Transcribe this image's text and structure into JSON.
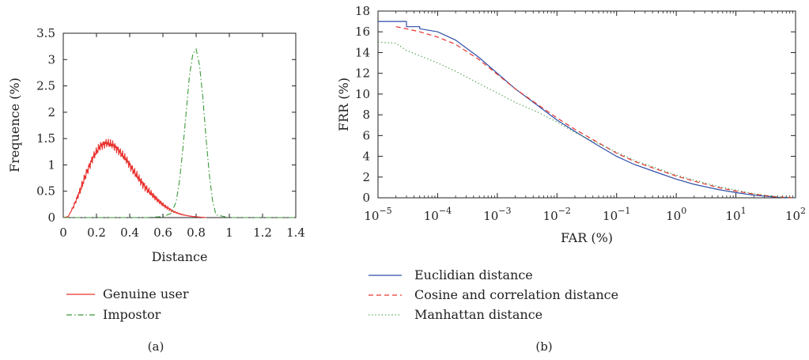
{
  "chart_data": [
    {
      "type": "line",
      "caption": "(a)",
      "xlabel": "Distance",
      "ylabel": "Frequence (%)",
      "xlim": [
        0,
        1.4
      ],
      "ylim": [
        0,
        3.5
      ],
      "xticks": [
        "0",
        "0.2",
        "0.4",
        "0.6",
        "0.8",
        "1",
        "1.2",
        "1.4"
      ],
      "yticks": [
        "0",
        "0.5",
        "1",
        "1.5",
        "2",
        "2.5",
        "3",
        "3.5"
      ],
      "grid": false,
      "legend_position": "below",
      "series": [
        {
          "name": "Genuine user",
          "color": "#e8332f",
          "dash": "solid",
          "x": [
            0,
            0.03,
            0.06,
            0.1,
            0.14,
            0.18,
            0.22,
            0.26,
            0.3,
            0.34,
            0.38,
            0.42,
            0.46,
            0.5,
            0.54,
            0.58,
            0.62,
            0.66,
            0.7,
            0.74,
            0.78,
            0.82,
            0.86
          ],
          "y": [
            0,
            0.02,
            0.2,
            0.5,
            0.85,
            1.15,
            1.35,
            1.42,
            1.38,
            1.25,
            1.1,
            0.9,
            0.72,
            0.55,
            0.42,
            0.3,
            0.2,
            0.12,
            0.07,
            0.04,
            0.02,
            0.01,
            0
          ]
        },
        {
          "name": "Impostor",
          "color": "#3a9a3a",
          "dash": "dashdot",
          "x": [
            0,
            0.5,
            0.6,
            0.65,
            0.68,
            0.7,
            0.72,
            0.74,
            0.76,
            0.78,
            0.8,
            0.82,
            0.84,
            0.86,
            0.88,
            0.9,
            0.92,
            1.0,
            1.4
          ],
          "y": [
            0,
            0,
            0.02,
            0.08,
            0.3,
            0.7,
            1.3,
            2.0,
            2.7,
            3.1,
            3.2,
            2.9,
            2.3,
            1.5,
            0.8,
            0.3,
            0.05,
            0,
            0
          ]
        }
      ]
    },
    {
      "type": "line",
      "caption": "(b)",
      "xlabel": "FAR (%)",
      "ylabel": "FRR (%)",
      "xscale": "log",
      "xlim": [
        1e-05,
        100
      ],
      "ylim": [
        0,
        18
      ],
      "xtick_exponents": [
        "−5",
        "−4",
        "−3",
        "−2",
        "−1",
        "0",
        "1",
        "2"
      ],
      "xtick_base": "10",
      "yticks": [
        "0",
        "2",
        "4",
        "6",
        "8",
        "10",
        "12",
        "14",
        "16",
        "18"
      ],
      "grid": false,
      "legend_position": "below",
      "series": [
        {
          "name": "Euclidian distance",
          "color": "#2f4fa8",
          "dash": "solid",
          "x": [
            1e-05,
            2e-05,
            3e-05,
            5e-05,
            0.0001,
            0.0002,
            0.0005,
            0.001,
            0.002,
            0.005,
            0.01,
            0.02,
            0.05,
            0.1,
            0.2,
            0.5,
            1,
            2,
            5,
            10,
            20,
            50,
            100
          ],
          "y": [
            17.0,
            17.0,
            16.5,
            16.3,
            16.0,
            15.2,
            13.5,
            12.0,
            10.5,
            8.8,
            7.5,
            6.4,
            5.0,
            4.0,
            3.2,
            2.4,
            1.8,
            1.3,
            0.8,
            0.5,
            0.25,
            0.05,
            0
          ]
        },
        {
          "name": "Cosine and correlation distance",
          "color": "#e8332f",
          "dash": "dashed",
          "x": [
            2e-05,
            3e-05,
            5e-05,
            0.0001,
            0.0002,
            0.0005,
            0.001,
            0.002,
            0.005,
            0.01,
            0.02,
            0.05,
            0.1,
            0.2,
            0.5,
            1,
            2,
            5,
            10,
            20,
            50,
            100
          ],
          "y": [
            16.5,
            16.3,
            16.0,
            15.5,
            14.8,
            13.3,
            11.9,
            10.5,
            8.9,
            7.7,
            6.6,
            5.3,
            4.3,
            3.5,
            2.7,
            2.1,
            1.6,
            1.0,
            0.65,
            0.35,
            0.08,
            0
          ]
        },
        {
          "name": "Manhattan distance",
          "color": "#3a9a3a",
          "dash": "dotted",
          "x": [
            1e-05,
            2e-05,
            3e-05,
            5e-05,
            0.0001,
            0.0002,
            0.0005,
            0.001,
            0.002,
            0.005,
            0.01,
            0.02,
            0.05,
            0.1,
            0.2,
            0.5,
            1,
            2,
            5,
            10,
            20,
            50,
            100
          ],
          "y": [
            15.0,
            14.9,
            14.2,
            13.7,
            13.0,
            12.2,
            11.0,
            10.1,
            9.2,
            8.2,
            7.3,
            6.3,
            5.2,
            4.4,
            3.6,
            2.8,
            2.2,
            1.7,
            1.1,
            0.75,
            0.4,
            0.1,
            0
          ]
        }
      ]
    }
  ]
}
